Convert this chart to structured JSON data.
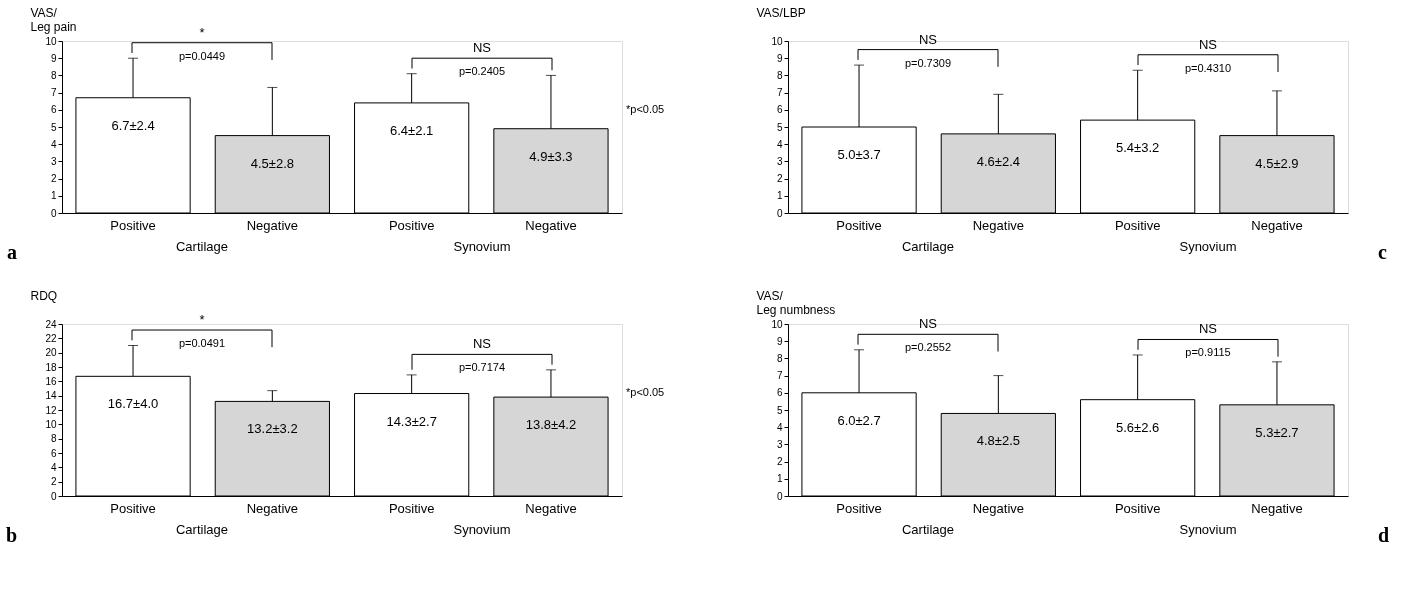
{
  "chart_data": [
    {
      "type": "bar",
      "ylabel": "VAS/\nLeg pain",
      "categories": [
        "Positive",
        "Negative",
        "Positive",
        "Negative"
      ],
      "values": [
        6.7,
        4.5,
        6.4,
        4.9
      ],
      "errors": [
        [
          6.7,
          9.0
        ],
        [
          4.5,
          7.3
        ],
        [
          6.4,
          8.1
        ],
        [
          4.9,
          8.0
        ]
      ],
      "value_labels": [
        "6.7±2.4",
        "4.5±2.8",
        "6.4±2.1",
        "4.9±3.3"
      ],
      "colors": [
        "#ffffff",
        "#d6d6d6",
        "#ffffff",
        "#d6d6d6"
      ],
      "ylim": [
        0,
        10
      ],
      "yticks": [
        0,
        1,
        2,
        3,
        4,
        5,
        6,
        7,
        8,
        9,
        10
      ],
      "grid": false,
      "annotations": [
        "Cartilage",
        "Synovium",
        "*",
        "p=0.0449",
        "NS",
        "p=0.2405",
        "*p<0.05",
        "a"
      ]
    },
    {
      "type": "bar",
      "ylabel": "VAS/LBP",
      "categories": [
        "Positive",
        "Negative",
        "Positive",
        "Negative"
      ],
      "values": [
        5.0,
        4.6,
        5.4,
        4.5
      ],
      "errors": [
        [
          5.0,
          8.6
        ],
        [
          4.6,
          6.9
        ],
        [
          5.4,
          8.3
        ],
        [
          4.5,
          7.1
        ]
      ],
      "value_labels": [
        "5.0±3.7",
        "4.6±2.4",
        "5.4±3.2",
        "4.5±2.9"
      ],
      "colors": [
        "#ffffff",
        "#d6d6d6",
        "#ffffff",
        "#d6d6d6"
      ],
      "ylim": [
        0,
        10
      ],
      "yticks": [
        0,
        1,
        2,
        3,
        4,
        5,
        6,
        7,
        8,
        9,
        10
      ],
      "grid": false,
      "annotations": [
        "Cartilage",
        "Synovium",
        "NS",
        "p=0.7309",
        "NS",
        "p=0.4310",
        "c"
      ]
    },
    {
      "type": "bar",
      "ylabel": "RDQ",
      "categories": [
        "Positive",
        "Negative",
        "Positive",
        "Negative"
      ],
      "values": [
        16.7,
        13.2,
        14.3,
        13.8
      ],
      "errors": [
        [
          16.7,
          21.0
        ],
        [
          13.2,
          14.7
        ],
        [
          14.3,
          16.9
        ],
        [
          13.8,
          17.6
        ]
      ],
      "value_labels": [
        "16.7±4.0",
        "13.2±3.2",
        "14.3±2.7",
        "13.8±4.2"
      ],
      "colors": [
        "#ffffff",
        "#d6d6d6",
        "#ffffff",
        "#d6d6d6"
      ],
      "ylim": [
        0,
        24
      ],
      "yticks": [
        0,
        2,
        4,
        6,
        8,
        10,
        12,
        14,
        16,
        18,
        20,
        22,
        24
      ],
      "grid": false,
      "annotations": [
        "Cartilage",
        "Synovium",
        "*",
        "p=0.0491",
        "NS",
        "p=0.7174",
        "*p<0.05",
        "b"
      ]
    },
    {
      "type": "bar",
      "ylabel": "VAS/\nLeg numbness",
      "categories": [
        "Positive",
        "Negative",
        "Positive",
        "Negative"
      ],
      "values": [
        6.0,
        4.8,
        5.6,
        5.3
      ],
      "errors": [
        [
          6.0,
          8.5
        ],
        [
          4.8,
          7.0
        ],
        [
          5.6,
          8.2
        ],
        [
          5.3,
          7.8
        ]
      ],
      "value_labels": [
        "6.0±2.7",
        "4.8±2.5",
        "5.6±2.6",
        "5.3±2.7"
      ],
      "colors": [
        "#ffffff",
        "#d6d6d6",
        "#ffffff",
        "#d6d6d6"
      ],
      "ylim": [
        0,
        10
      ],
      "yticks": [
        0,
        1,
        2,
        3,
        4,
        5,
        6,
        7,
        8,
        9,
        10
      ],
      "grid": false,
      "annotations": [
        "Cartilage",
        "Synovium",
        "NS",
        "p=0.2552",
        "NS",
        "p=0.9115",
        "d"
      ]
    }
  ]
}
